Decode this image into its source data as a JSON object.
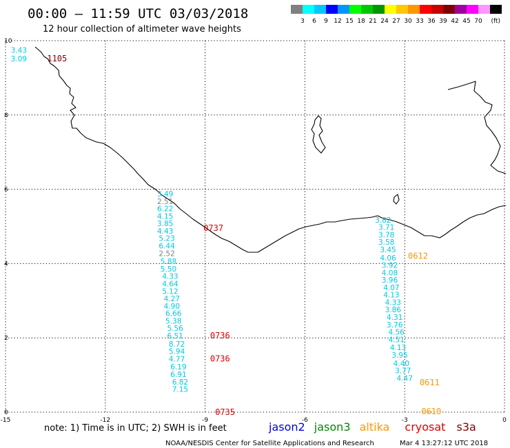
{
  "header": {
    "title": "00:00 – 11:59 UTC 03/03/2018",
    "subtitle": "12 hour collection of altimeter wave heights"
  },
  "color_scale": {
    "colors": [
      "#808080",
      "#00ffff",
      "#00c8ff",
      "#0000ff",
      "#0096ff",
      "#00ff00",
      "#00c800",
      "#009600",
      "#ffff00",
      "#ffc800",
      "#ff9600",
      "#ff0000",
      "#c80000",
      "#800000",
      "#a000a0",
      "#ff00ff",
      "#ff96ff",
      "#000000"
    ],
    "labels": [
      "3",
      "6",
      "9",
      "12",
      "15",
      "18",
      "21",
      "24",
      "27",
      "30",
      "33",
      "36",
      "39",
      "42",
      "45",
      "70"
    ],
    "unit": "(ft)"
  },
  "map": {
    "lon_range": [
      -15,
      0
    ],
    "lat_range": [
      0,
      10
    ],
    "x_ticks": [
      "-15",
      "-12",
      "-9",
      "-6",
      "-3",
      "0"
    ],
    "y_ticks": [
      "10",
      "8",
      "6",
      "4",
      "2",
      "0"
    ]
  },
  "tracks": [
    {
      "time": "1105",
      "time_color": "#800000",
      "color": "#00c8e0",
      "points": [
        {
          "lon": -14.6,
          "lat": 9.75,
          "v": "3.43"
        },
        {
          "lon": -14.6,
          "lat": 9.52,
          "v": "3.09"
        }
      ]
    },
    {
      "time": "0737",
      "time_color": "#dd0000",
      "color": "#00c8e0",
      "points": [
        {
          "lon": -10.2,
          "lat": 5.88,
          "v": "3.49"
        },
        {
          "lon": -10.2,
          "lat": 5.68,
          "v": "2.51",
          "c": "#808080"
        },
        {
          "lon": -10.2,
          "lat": 5.48,
          "v": "6.22"
        },
        {
          "lon": -10.2,
          "lat": 5.28,
          "v": "4.15"
        },
        {
          "lon": -10.2,
          "lat": 5.08,
          "v": "3.85"
        },
        {
          "lon": -10.2,
          "lat": 4.88,
          "v": "4.43"
        },
        {
          "lon": -10.15,
          "lat": 4.68,
          "v": "5.23"
        },
        {
          "lon": -10.15,
          "lat": 4.48,
          "v": "6.44"
        },
        {
          "lon": -10.15,
          "lat": 4.28,
          "v": "2.52",
          "c": "#808080"
        }
      ]
    },
    {
      "time": "0736",
      "time_color": "#dd0000",
      "color": "#00c8e0",
      "points": [
        {
          "lon": -10.1,
          "lat": 4.06,
          "v": "5.88"
        },
        {
          "lon": -10.1,
          "lat": 3.86,
          "v": "5.50"
        },
        {
          "lon": -10.05,
          "lat": 3.66,
          "v": "4.33"
        },
        {
          "lon": -10.05,
          "lat": 3.46,
          "v": "4.64"
        },
        {
          "lon": -10.05,
          "lat": 3.26,
          "v": "5.12"
        },
        {
          "lon": -10.0,
          "lat": 3.06,
          "v": "4.27"
        },
        {
          "lon": -10.0,
          "lat": 2.86,
          "v": "4.90"
        },
        {
          "lon": -9.95,
          "lat": 2.66,
          "v": "6.66"
        },
        {
          "lon": -9.95,
          "lat": 2.46,
          "v": "5.38"
        },
        {
          "lon": -9.9,
          "lat": 2.26,
          "v": "5.56"
        },
        {
          "lon": -9.9,
          "lat": 2.06,
          "v": "6.51"
        }
      ]
    },
    {
      "time": "0736",
      "time_color": "#dd0000",
      "color": "#00c8e0",
      "points": [
        {
          "lon": -9.85,
          "lat": 1.84,
          "v": "8.72"
        },
        {
          "lon": -9.85,
          "lat": 1.64,
          "v": "5.94"
        },
        {
          "lon": -9.85,
          "lat": 1.44,
          "v": "4.77"
        },
        {
          "lon": -9.8,
          "lat": 1.22,
          "v": "6.19"
        },
        {
          "lon": -9.8,
          "lat": 1.02,
          "v": "6.91"
        },
        {
          "lon": -9.75,
          "lat": 0.82,
          "v": "6.82"
        },
        {
          "lon": -9.75,
          "lat": 0.62,
          "v": "7.15"
        }
      ]
    },
    {
      "time": "0735",
      "time_color": "#dd0000",
      "color": "#00c8e0",
      "points": []
    },
    {
      "time": "0612",
      "time_color": "#ff9600",
      "color": "#00c8e0",
      "points": [
        {
          "lon": -3.65,
          "lat": 5.18,
          "v": "3.82"
        },
        {
          "lon": -3.55,
          "lat": 4.98,
          "v": "3.71"
        },
        {
          "lon": -3.55,
          "lat": 4.78,
          "v": "3.78"
        },
        {
          "lon": -3.55,
          "lat": 4.58,
          "v": "3.58"
        },
        {
          "lon": -3.5,
          "lat": 4.38,
          "v": "3.45"
        },
        {
          "lon": -3.5,
          "lat": 4.16,
          "v": "4.06"
        }
      ]
    },
    {
      "time": "0611",
      "time_color": "#ff9600",
      "color": "#00c8e0",
      "points": [
        {
          "lon": -3.45,
          "lat": 3.96,
          "v": "3.92"
        },
        {
          "lon": -3.45,
          "lat": 3.76,
          "v": "4.08"
        },
        {
          "lon": -3.45,
          "lat": 3.56,
          "v": "3.96"
        },
        {
          "lon": -3.4,
          "lat": 3.36,
          "v": "4.07"
        },
        {
          "lon": -3.4,
          "lat": 3.16,
          "v": "4.13"
        },
        {
          "lon": -3.35,
          "lat": 2.96,
          "v": "4.33"
        },
        {
          "lon": -3.35,
          "lat": 2.76,
          "v": "3.86"
        },
        {
          "lon": -3.3,
          "lat": 2.56,
          "v": "4.31"
        },
        {
          "lon": -3.3,
          "lat": 2.36,
          "v": "3.76"
        },
        {
          "lon": -3.25,
          "lat": 2.16,
          "v": "4.56"
        },
        {
          "lon": -3.25,
          "lat": 1.96,
          "v": "4.51"
        },
        {
          "lon": -3.2,
          "lat": 1.74,
          "v": "4.13"
        },
        {
          "lon": -3.15,
          "lat": 1.54,
          "v": "3.95"
        }
      ]
    },
    {
      "time": "0610",
      "time_color": "#ff9600",
      "color": "#00c8e0",
      "points": [
        {
          "lon": -3.1,
          "lat": 1.32,
          "v": "4.40"
        },
        {
          "lon": -3.05,
          "lat": 1.12,
          "v": "3.77"
        },
        {
          "lon": -3.0,
          "lat": 0.92,
          "v": "4.47"
        }
      ]
    }
  ],
  "time_labels": [
    {
      "text": "1105",
      "lon": -13.45,
      "lat": 9.52,
      "color": "#800000"
    },
    {
      "text": "0737",
      "lon": -8.75,
      "lat": 4.95,
      "color": "#dd0000"
    },
    {
      "text": "0736",
      "lon": -8.55,
      "lat": 2.06,
      "color": "#dd0000"
    },
    {
      "text": "0736",
      "lon": -8.55,
      "lat": 1.44,
      "color": "#dd0000"
    },
    {
      "text": "0735",
      "lon": -8.4,
      "lat": 0.0,
      "color": "#dd0000"
    },
    {
      "text": "0612",
      "lon": -2.6,
      "lat": 4.2,
      "color": "#ff9600"
    },
    {
      "text": "0611",
      "lon": -2.25,
      "lat": 0.8,
      "color": "#ff9600"
    },
    {
      "text": "0610",
      "lon": -2.2,
      "lat": 0.02,
      "color": "#ff9600"
    }
  ],
  "footer": {
    "note": "note: 1) Time is in UTC; 2) SWH is in feet",
    "satellites": [
      {
        "name": "jason2",
        "color": "#0000dd"
      },
      {
        "name": "jason3",
        "color": "#008800"
      },
      {
        "name": "altika",
        "color": "#ff9600"
      },
      {
        "name": "cryosat",
        "color": "#dd0000"
      },
      {
        "name": "s3a",
        "color": "#800000"
      }
    ],
    "credit": "NOAA/NESDIS Center for Satellite Applications and Research",
    "timestamp": "Mar  4 13:27:12 UTC 2018"
  }
}
